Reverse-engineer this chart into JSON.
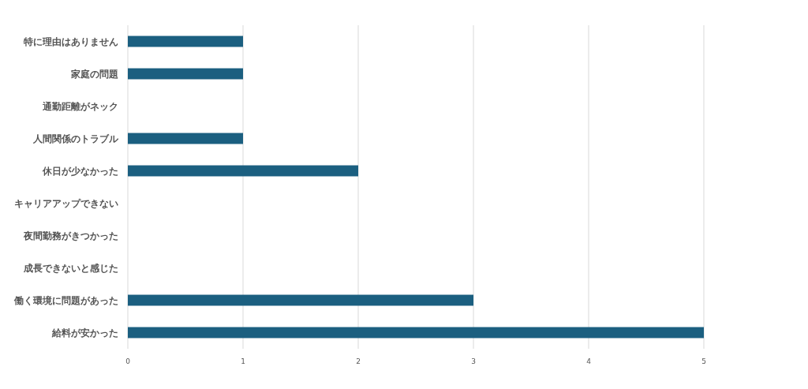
{
  "chart_data": {
    "type": "bar",
    "orientation": "horizontal",
    "categories": [
      "特に理由はありません",
      "家庭の問題",
      "通勤距離がネック",
      "人間関係のトラブル",
      "休日が少なかった",
      "キャリアアップできない",
      "夜間勤務がきつかった",
      "成長できないと感じた",
      "働く環境に問題があった",
      "給料が安かった"
    ],
    "values": [
      1,
      1,
      0,
      1,
      2,
      0,
      0,
      0,
      3,
      5
    ],
    "color": "#1b5f80",
    "xlim": [
      0,
      5
    ],
    "xticks": [
      0,
      1,
      2,
      3,
      4,
      5
    ],
    "grid": "x"
  }
}
